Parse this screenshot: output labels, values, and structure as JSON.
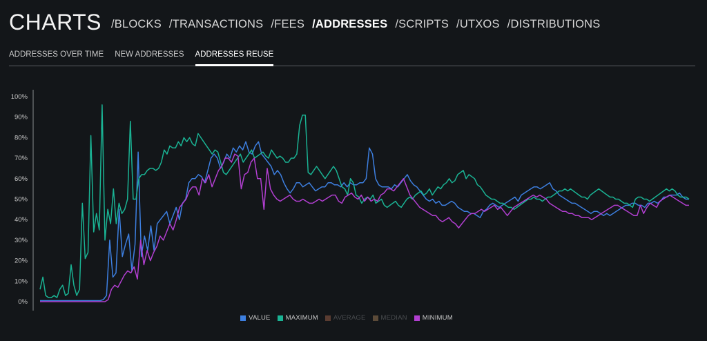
{
  "header": {
    "title": "CHARTS",
    "nav": [
      {
        "label": "/BLOCKS",
        "active": false
      },
      {
        "label": "/TRANSACTIONS",
        "active": false
      },
      {
        "label": "/FEES",
        "active": false
      },
      {
        "label": "/ADDRESSES",
        "active": true
      },
      {
        "label": "/SCRIPTS",
        "active": false
      },
      {
        "label": "/UTXOS",
        "active": false
      },
      {
        "label": "/DISTRIBUTIONS",
        "active": false
      }
    ]
  },
  "subtabs": [
    {
      "label": "ADDRESSES OVER TIME",
      "active": false
    },
    {
      "label": "NEW ADDRESSES",
      "active": false
    },
    {
      "label": "ADDRESSES REUSE",
      "active": true
    }
  ],
  "chart_data": {
    "type": "line",
    "ylim": [
      0,
      100
    ],
    "yticks": [
      "0%",
      "10%",
      "20%",
      "30%",
      "40%",
      "50%",
      "60%",
      "70%",
      "80%",
      "90%",
      "100%"
    ],
    "grid": false,
    "legend_position": "bottom",
    "series": [
      {
        "name": "VALUE",
        "color": "#3d7fe0",
        "visible": true,
        "values": [
          0.5,
          0.5,
          0.5,
          0.5,
          0.5,
          0.5,
          0.5,
          0.5,
          0.5,
          0.5,
          0.5,
          0.5,
          0.5,
          0.5,
          0.5,
          0.5,
          0.5,
          0.5,
          0.5,
          0.5,
          1,
          3,
          30,
          12,
          14,
          45,
          22,
          28,
          33,
          15,
          28,
          73,
          22,
          32,
          25,
          37,
          25,
          38,
          40,
          42,
          44,
          38,
          42,
          46,
          40,
          48,
          50,
          58,
          60,
          60,
          62,
          61,
          58,
          64,
          70,
          72,
          70,
          65,
          68,
          72,
          70,
          75,
          73,
          76,
          74,
          78,
          73,
          72,
          76,
          78,
          72,
          70,
          68,
          66,
          62,
          64,
          62,
          58,
          55,
          53,
          55,
          58,
          58,
          56,
          57,
          58,
          56,
          54,
          55,
          56,
          56,
          58,
          58,
          57,
          57,
          56,
          58,
          56,
          58,
          57,
          57,
          58,
          58,
          60,
          75,
          72,
          60,
          57,
          56,
          56,
          56,
          55,
          57,
          56,
          58,
          60,
          62,
          59,
          57,
          56,
          54,
          52,
          50,
          49,
          50,
          48,
          49,
          47,
          47,
          48,
          49,
          48,
          46,
          45,
          44,
          44,
          43,
          43,
          42,
          41,
          44,
          45,
          47,
          48,
          47,
          46,
          47,
          48,
          49,
          50,
          51,
          49,
          52,
          53,
          54,
          55,
          56,
          56,
          55,
          56,
          57,
          58,
          55,
          54,
          52,
          51,
          50,
          49,
          48,
          48,
          47,
          46,
          45,
          44,
          43,
          44,
          44,
          43,
          42,
          43,
          42,
          43,
          44,
          45,
          46,
          47,
          47,
          48,
          48,
          47,
          47,
          46,
          48,
          48,
          49,
          48,
          49,
          51,
          51,
          52,
          52,
          52,
          53,
          51,
          50,
          50
        ]
      },
      {
        "name": "MAXIMUM",
        "color": "#1ab394",
        "visible": true,
        "values": [
          6,
          12,
          3,
          2,
          2,
          3,
          2,
          6,
          8,
          3,
          4,
          18,
          8,
          3,
          6,
          48,
          21,
          24,
          81,
          34,
          43,
          35,
          96,
          30,
          45,
          38,
          55,
          38,
          48,
          43,
          45,
          50,
          88,
          50,
          50,
          60,
          62,
          62,
          64,
          65,
          65,
          64,
          65,
          68,
          74,
          72,
          76,
          75,
          75,
          78,
          76,
          80,
          78,
          80,
          77,
          76,
          82,
          80,
          78,
          76,
          74,
          72,
          74,
          73,
          68,
          63,
          62,
          64,
          66,
          68,
          70,
          72,
          68,
          70,
          72,
          74,
          70,
          71,
          72,
          73,
          71,
          70,
          74,
          72,
          70,
          71,
          70,
          68,
          68,
          70,
          70,
          72,
          86,
          91,
          91,
          63,
          62,
          64,
          66,
          64,
          62,
          60,
          62,
          64,
          66,
          64,
          60,
          56,
          55,
          52,
          60,
          58,
          52,
          51,
          48,
          50,
          51,
          50,
          52,
          48,
          49,
          50,
          47,
          46,
          47,
          48,
          49,
          47,
          46,
          48,
          50,
          51,
          50,
          52,
          53,
          54,
          52,
          53,
          55,
          52,
          54,
          56,
          55,
          57,
          58,
          60,
          58,
          59,
          62,
          63,
          64,
          60,
          62,
          61,
          60,
          57,
          56,
          54,
          52,
          51,
          50,
          50,
          49,
          48,
          48,
          47,
          46,
          46,
          45,
          46,
          47,
          48,
          49,
          50,
          50,
          51,
          50,
          50,
          49,
          50,
          51,
          51,
          52,
          53,
          54,
          54,
          55,
          54,
          55,
          54,
          53,
          52,
          51,
          51,
          50,
          52,
          53,
          54,
          55,
          54,
          53,
          52,
          51,
          51,
          50,
          50,
          49,
          48,
          48,
          47,
          46,
          50,
          51,
          51,
          50,
          50,
          49,
          50,
          51,
          52,
          53,
          54,
          55,
          54,
          55,
          54,
          52,
          51,
          51,
          51,
          50
        ]
      },
      {
        "name": "AVERAGE",
        "color": "#5a3c31",
        "visible": false,
        "values": []
      },
      {
        "name": "MEDIAN",
        "color": "#5b4a38",
        "visible": false,
        "values": []
      },
      {
        "name": "MINIMUM",
        "color": "#b23fd1",
        "visible": true,
        "values": [
          0,
          0,
          0,
          0,
          0,
          0,
          0,
          0,
          0,
          0,
          0,
          0,
          0,
          0,
          0,
          0,
          0,
          0,
          0,
          0,
          0,
          1,
          6,
          8,
          7,
          10,
          13,
          15,
          14,
          17,
          11,
          30,
          18,
          25,
          20,
          24,
          27,
          32,
          30,
          34,
          38,
          35,
          40,
          46,
          48,
          50,
          54,
          56,
          56,
          52,
          60,
          58,
          62,
          56,
          60,
          64,
          66,
          70,
          70,
          68,
          72,
          71,
          55,
          62,
          63,
          68,
          70,
          60,
          60,
          45,
          65,
          55,
          52,
          50,
          49,
          50,
          51,
          52,
          50,
          49,
          49,
          50,
          49,
          48,
          48,
          49,
          50,
          49,
          50,
          51,
          52,
          52,
          49,
          48,
          51,
          52,
          53,
          51,
          50,
          52,
          49,
          51,
          49,
          50,
          49,
          52,
          53,
          55,
          55,
          54,
          56,
          58,
          60,
          56,
          52,
          50,
          48,
          46,
          45,
          44,
          43,
          42,
          42,
          40,
          39,
          40,
          41,
          39,
          38,
          36,
          38,
          40,
          42,
          43,
          43,
          44,
          45,
          44,
          45,
          46,
          47,
          45,
          46,
          44,
          42,
          44,
          46,
          47,
          48,
          49,
          50,
          51,
          52,
          51,
          52,
          51,
          50,
          48,
          47,
          46,
          45,
          44,
          44,
          43,
          43,
          42,
          42,
          41,
          41,
          41,
          40,
          41,
          42,
          43,
          44,
          45,
          46,
          47,
          47,
          46,
          45,
          44,
          43,
          42,
          42,
          47,
          43,
          46,
          48,
          47,
          46,
          49,
          50,
          51,
          52,
          51,
          50,
          49,
          48,
          47,
          47
        ]
      }
    ]
  }
}
